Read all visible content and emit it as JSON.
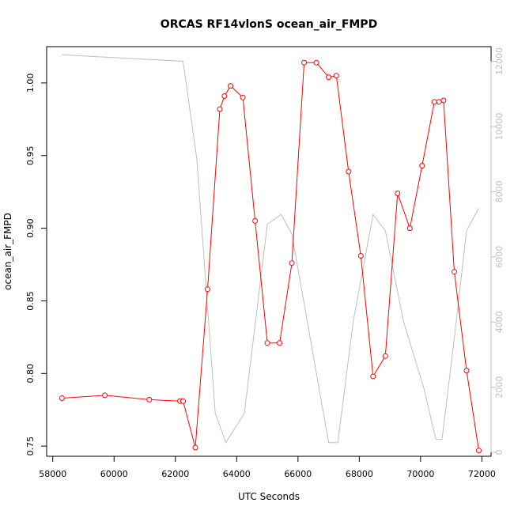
{
  "chart_data": {
    "type": "line",
    "title": "ORCAS RF14vlonS ocean_air_FMPD",
    "xlabel": "UTC Seconds",
    "ylabel": "ocean_air_FMPD",
    "xlim": [
      57800,
      72300
    ],
    "ylim": [
      0.743,
      1.025
    ],
    "y2lim": [
      -120,
      12450
    ],
    "x_ticks": [
      58000,
      60000,
      62000,
      64000,
      66000,
      68000,
      70000,
      72000
    ],
    "y_ticks": [
      0.75,
      0.8,
      0.85,
      0.9,
      0.95,
      1.0
    ],
    "y2_ticks": [
      0,
      2000,
      4000,
      6000,
      8000,
      10000,
      12000
    ],
    "colors": {
      "primary": "#ff0000",
      "secondary": "#bebebe"
    },
    "series": [
      {
        "axis": "left",
        "color": "#ff0000",
        "style": "line+points",
        "x": [
          58300,
          59700,
          61150,
          62150,
          62250,
          62650,
          63050,
          63450,
          63600,
          63800,
          64200,
          64600,
          65000,
          65400,
          65800,
          66200,
          66600,
          67000,
          67250,
          67650,
          68050,
          68450,
          68850,
          69250,
          69650,
          70050,
          70450,
          70600,
          70750,
          71100,
          71500,
          71900
        ],
        "y": [
          0.783,
          0.785,
          0.782,
          0.781,
          0.781,
          0.749,
          0.858,
          0.982,
          0.991,
          0.998,
          0.99,
          0.905,
          0.821,
          0.821,
          0.876,
          1.014,
          1.014,
          1.004,
          1.005,
          0.939,
          0.881,
          0.798,
          0.812,
          0.924,
          0.9,
          0.943,
          0.987,
          0.987,
          0.988,
          0.87,
          0.802,
          0.747
        ]
      },
      {
        "axis": "right",
        "color": "#bebebe",
        "style": "line",
        "x": [
          58300,
          62250,
          62700,
          63300,
          63650,
          64250,
          65000,
          65450,
          65800,
          66400,
          67000,
          67300,
          67800,
          68450,
          68850,
          69450,
          70100,
          70500,
          70700,
          71100,
          71500,
          71900
        ],
        "y": [
          12200,
          12000,
          9000,
          1200,
          300,
          1200,
          7000,
          7300,
          6700,
          3500,
          300,
          300,
          4000,
          7300,
          6800,
          4000,
          2000,
          400,
          400,
          3500,
          6800,
          7500
        ]
      }
    ]
  }
}
